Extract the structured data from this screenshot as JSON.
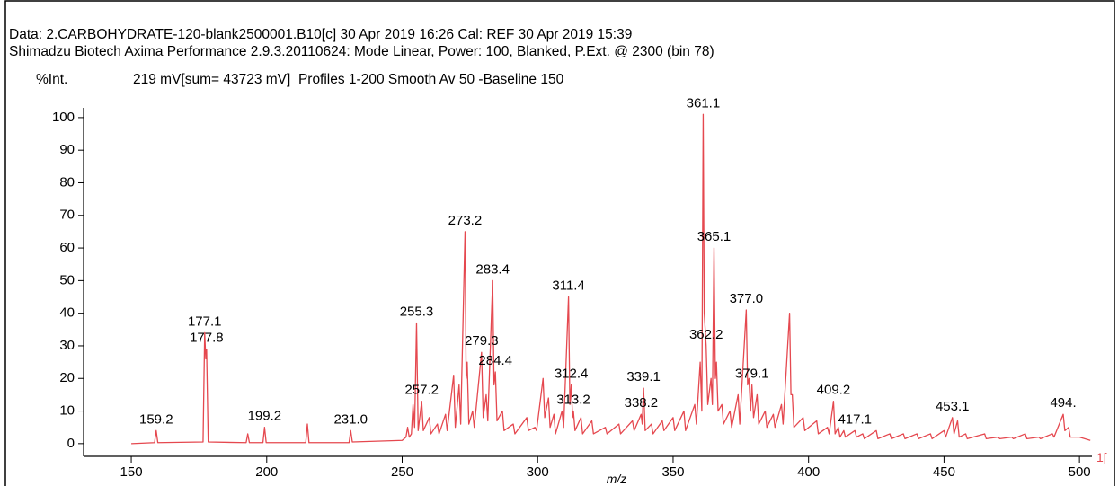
{
  "chart_data": {
    "type": "line",
    "title": "Data: 2.CARBOHYDRATE-120-blank2500001.B10[c] 30 Apr 2019 16:26 Cal: REF 30 Apr 2019 15:39",
    "subtitle": "Shimadzu Biotech Axima Performance 2.9.3.20110624: Mode Linear, Power: 100, Blanked, P.Ext. @ 2300 (bin 78)",
    "y_label": "%Int.",
    "info": "219 mV[sum= 43723 mV]  Profiles 1-200 Smooth Av 50 -Baseline 150",
    "x_label": "m/z",
    "x_edge_label": "1[",
    "xlim": [
      132.4,
      504.6
    ],
    "ylim": [
      -3.9,
      103
    ],
    "xticks": [
      150,
      200,
      250,
      300,
      350,
      400,
      450,
      500
    ],
    "yticks": [
      0,
      10,
      20,
      30,
      40,
      50,
      60,
      70,
      80,
      90,
      100
    ],
    "x": [
      150,
      158.6,
      159.2,
      159.8,
      176.5,
      177.1,
      177.5,
      177.8,
      178.4,
      192.4,
      193,
      193.6,
      198.6,
      199.2,
      199.8,
      214.4,
      215,
      215.6,
      230.4,
      231,
      231.6,
      250,
      251.4,
      252,
      252.6,
      253.4,
      254,
      254.6,
      255.3,
      255.9,
      257.2,
      257.8,
      260,
      260.6,
      263,
      263.6,
      266,
      266.6,
      269,
      269.6,
      271,
      271.6,
      273.2,
      273.6,
      274,
      274.6,
      276,
      276.6,
      279.3,
      279.9,
      281,
      281.6,
      283.4,
      283.9,
      284.4,
      285,
      287,
      287.6,
      291,
      291.6,
      296,
      296.6,
      299,
      299.6,
      302,
      302.6,
      304,
      304.6,
      306,
      306.6,
      309,
      309.6,
      311.4,
      311.9,
      312.4,
      312.9,
      313.2,
      313.8,
      316,
      316.6,
      320,
      320.6,
      325,
      325.6,
      330,
      330.6,
      335,
      335.6,
      338.2,
      338.6,
      339.1,
      339.7,
      342,
      342.6,
      346,
      346.6,
      350,
      350.6,
      354,
      354.6,
      358,
      358.6,
      360,
      360.6,
      361.1,
      361.5,
      362.2,
      362.8,
      364,
      364.5,
      365.1,
      365.6,
      366,
      366.6,
      368,
      368.6,
      371,
      371.6,
      374,
      374.6,
      377,
      377.5,
      378,
      378.6,
      379.1,
      379.7,
      381,
      381.6,
      384,
      384.6,
      387,
      387.6,
      390,
      390.6,
      393,
      393.5,
      394,
      394.6,
      398,
      398.6,
      403,
      403.6,
      407,
      407.6,
      409.2,
      409.8,
      411,
      411.6,
      413,
      413.6,
      417.1,
      417.7,
      420,
      420.6,
      425,
      425.6,
      430,
      430.6,
      435,
      435.6,
      440,
      440.6,
      445,
      445.6,
      450,
      450.6,
      453.1,
      453.7,
      455,
      455.6,
      458,
      458.6,
      465,
      465.6,
      470,
      470.6,
      475,
      475.6,
      480,
      480.6,
      485,
      485.6,
      490,
      490.6,
      494,
      494.6,
      496,
      496.6,
      500,
      504
    ],
    "series": [
      {
        "color": "#e5484f",
        "values": [
          0,
          0.3,
          4,
          0.3,
          0.5,
          34,
          26,
          29,
          0.5,
          0.3,
          3,
          0.3,
          0.3,
          5,
          0.3,
          0.3,
          6,
          0.3,
          0.3,
          4,
          0.5,
          1,
          2,
          5,
          2,
          3,
          12,
          5,
          37,
          4,
          13,
          4,
          8,
          3,
          6,
          3,
          9,
          4,
          21,
          5,
          18,
          6,
          65,
          20,
          25,
          6,
          10,
          5,
          28,
          8,
          15,
          7,
          50,
          18,
          22,
          7,
          10,
          4,
          6,
          3,
          8,
          4,
          5,
          4,
          20,
          8,
          14,
          5,
          9,
          3,
          10,
          5,
          45,
          12,
          18,
          8,
          10,
          4,
          8,
          3,
          7,
          3,
          5,
          3,
          6,
          3,
          7,
          4,
          9,
          6,
          17,
          4,
          6,
          3,
          7,
          4,
          8,
          4,
          10,
          4,
          12,
          6,
          25,
          10,
          101,
          40,
          30,
          12,
          20,
          12,
          60,
          20,
          25,
          10,
          12,
          6,
          10,
          5,
          15,
          6,
          41,
          18,
          20,
          10,
          18,
          8,
          15,
          6,
          10,
          5,
          9,
          5,
          12,
          6,
          40,
          15,
          15,
          5,
          8,
          4,
          7,
          3,
          5,
          3,
          13,
          3,
          5,
          2,
          4,
          2,
          4,
          2,
          3,
          1.5,
          4,
          1.5,
          3,
          1.5,
          3,
          1.5,
          3,
          1.5,
          3,
          1.5,
          4,
          2,
          8,
          3,
          7,
          2,
          3,
          1.5,
          3,
          1.5,
          2,
          1.5,
          2,
          1.5,
          3,
          1.5,
          2,
          1.5,
          3,
          2,
          9,
          4,
          5,
          2,
          2,
          1
        ]
      }
    ],
    "peak_labels": [
      {
        "label": "159.2",
        "x": 159.2,
        "y": 4
      },
      {
        "label": "177.1",
        "x": 177.1,
        "y": 34
      },
      {
        "label": "177.8",
        "x": 177.8,
        "y": 29
      },
      {
        "label": "199.2",
        "x": 199.2,
        "y": 5
      },
      {
        "label": "231.0",
        "x": 231,
        "y": 4
      },
      {
        "label": "255.3",
        "x": 255.3,
        "y": 37
      },
      {
        "label": "257.2",
        "x": 257.2,
        "y": 13
      },
      {
        "label": "273.2",
        "x": 273.2,
        "y": 65
      },
      {
        "label": "279.3",
        "x": 279.3,
        "y": 28
      },
      {
        "label": "283.4",
        "x": 283.4,
        "y": 50
      },
      {
        "label": "284.4",
        "x": 284.4,
        "y": 22
      },
      {
        "label": "311.4",
        "x": 311.4,
        "y": 45
      },
      {
        "label": "312.4",
        "x": 312.4,
        "y": 18
      },
      {
        "label": "313.2",
        "x": 313.2,
        "y": 10
      },
      {
        "label": "338.2",
        "x": 338.2,
        "y": 9
      },
      {
        "label": "339.1",
        "x": 339.1,
        "y": 17
      },
      {
        "label": "361.1",
        "x": 361.1,
        "y": 101
      },
      {
        "label": "362.2",
        "x": 362.2,
        "y": 30
      },
      {
        "label": "365.1",
        "x": 365.1,
        "y": 60
      },
      {
        "label": "377.0",
        "x": 377,
        "y": 41
      },
      {
        "label": "379.1",
        "x": 379.1,
        "y": 18
      },
      {
        "label": "409.2",
        "x": 409.2,
        "y": 13
      },
      {
        "label": "417.1",
        "x": 417.1,
        "y": 4
      },
      {
        "label": "453.1",
        "x": 453.1,
        "y": 8
      },
      {
        "label": "494.",
        "x": 494,
        "y": 9
      }
    ]
  }
}
